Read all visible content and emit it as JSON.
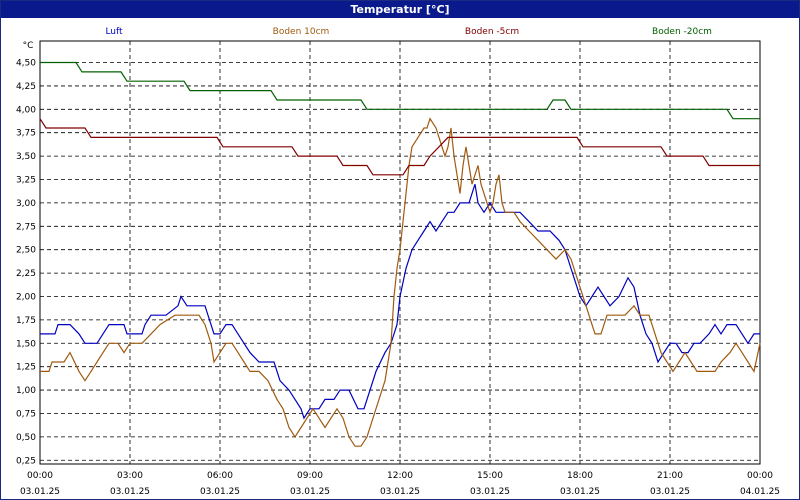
{
  "window": {
    "title": "Temperatur [°C]"
  },
  "chart_data": {
    "type": "line",
    "title": "Temperatur [°C]",
    "ylabel": "°C",
    "xlabel": "",
    "grid": true,
    "legend_placement": "top",
    "xlim": [
      "03.01.25 00:00",
      "04.01.25 00:00"
    ],
    "ylim": [
      0.21,
      4.73
    ],
    "y_ticks": [
      "4,50",
      "4,25",
      "4,00",
      "3,75",
      "3,50",
      "3,25",
      "3,00",
      "2,75",
      "2,50",
      "2,25",
      "2,00",
      "1,75",
      "1,50",
      "1,25",
      "1,00",
      "0,75",
      "0,50",
      "0,25"
    ],
    "y_tick_values": [
      4.5,
      4.25,
      4.0,
      3.75,
      3.5,
      3.25,
      3.0,
      2.75,
      2.5,
      2.25,
      2.0,
      1.75,
      1.5,
      1.25,
      1.0,
      0.75,
      0.5,
      0.25
    ],
    "x_ticks": [
      {
        "time": "00:00",
        "date": "03.01.25"
      },
      {
        "time": "03:00",
        "date": "03.01.25"
      },
      {
        "time": "06:00",
        "date": "03.01.25"
      },
      {
        "time": "09:00",
        "date": "03.01.25"
      },
      {
        "time": "12:00",
        "date": "03.01.25"
      },
      {
        "time": "15:00",
        "date": "03.01.25"
      },
      {
        "time": "18:00",
        "date": "03.01.25"
      },
      {
        "time": "21:00",
        "date": "03.01.25"
      },
      {
        "time": "00:00",
        "date": "04.01.25"
      }
    ],
    "x_tick_hours": [
      0,
      3,
      6,
      9,
      12,
      15,
      18,
      21,
      24
    ],
    "series": [
      {
        "name": "Luft",
        "color": "#0000c0",
        "points": [
          [
            0,
            1.6
          ],
          [
            0.5,
            1.6
          ],
          [
            0.6,
            1.7
          ],
          [
            1.0,
            1.7
          ],
          [
            1.3,
            1.6
          ],
          [
            1.5,
            1.5
          ],
          [
            1.9,
            1.5
          ],
          [
            2.1,
            1.6
          ],
          [
            2.3,
            1.7
          ],
          [
            2.8,
            1.7
          ],
          [
            2.9,
            1.6
          ],
          [
            3.4,
            1.6
          ],
          [
            3.5,
            1.7
          ],
          [
            3.7,
            1.8
          ],
          [
            4.2,
            1.8
          ],
          [
            4.6,
            1.9
          ],
          [
            4.7,
            2.0
          ],
          [
            4.9,
            1.9
          ],
          [
            5.5,
            1.9
          ],
          [
            5.7,
            1.7
          ],
          [
            5.8,
            1.6
          ],
          [
            6.0,
            1.6
          ],
          [
            6.2,
            1.7
          ],
          [
            6.4,
            1.7
          ],
          [
            6.6,
            1.6
          ],
          [
            6.8,
            1.5
          ],
          [
            7.0,
            1.4
          ],
          [
            7.3,
            1.3
          ],
          [
            7.8,
            1.3
          ],
          [
            8.0,
            1.1
          ],
          [
            8.3,
            1.0
          ],
          [
            8.5,
            0.9
          ],
          [
            8.7,
            0.8
          ],
          [
            8.8,
            0.7
          ],
          [
            9.0,
            0.8
          ],
          [
            9.3,
            0.8
          ],
          [
            9.5,
            0.9
          ],
          [
            9.8,
            0.9
          ],
          [
            10.0,
            1.0
          ],
          [
            10.3,
            1.0
          ],
          [
            10.6,
            0.8
          ],
          [
            10.8,
            0.8
          ],
          [
            11.0,
            1.0
          ],
          [
            11.2,
            1.2
          ],
          [
            11.5,
            1.4
          ],
          [
            11.7,
            1.5
          ],
          [
            11.9,
            1.7
          ],
          [
            12.0,
            2.0
          ],
          [
            12.2,
            2.3
          ],
          [
            12.4,
            2.5
          ],
          [
            12.6,
            2.6
          ],
          [
            12.8,
            2.7
          ],
          [
            13.0,
            2.8
          ],
          [
            13.2,
            2.7
          ],
          [
            13.4,
            2.8
          ],
          [
            13.6,
            2.9
          ],
          [
            13.8,
            2.9
          ],
          [
            14.0,
            3.0
          ],
          [
            14.3,
            3.0
          ],
          [
            14.5,
            3.2
          ],
          [
            14.6,
            3.0
          ],
          [
            14.8,
            2.9
          ],
          [
            15.0,
            3.0
          ],
          [
            15.2,
            2.9
          ],
          [
            15.4,
            2.9
          ],
          [
            15.6,
            2.9
          ],
          [
            16.0,
            2.9
          ],
          [
            16.3,
            2.8
          ],
          [
            16.6,
            2.7
          ],
          [
            17.0,
            2.7
          ],
          [
            17.3,
            2.6
          ],
          [
            17.5,
            2.5
          ],
          [
            17.7,
            2.3
          ],
          [
            17.9,
            2.1
          ],
          [
            18.0,
            2.0
          ],
          [
            18.2,
            1.9
          ],
          [
            18.4,
            2.0
          ],
          [
            18.6,
            2.1
          ],
          [
            18.8,
            2.0
          ],
          [
            19.0,
            1.9
          ],
          [
            19.3,
            2.0
          ],
          [
            19.6,
            2.2
          ],
          [
            19.8,
            2.1
          ],
          [
            20.0,
            1.8
          ],
          [
            20.2,
            1.6
          ],
          [
            20.4,
            1.5
          ],
          [
            20.6,
            1.3
          ],
          [
            20.8,
            1.4
          ],
          [
            21.0,
            1.5
          ],
          [
            21.2,
            1.5
          ],
          [
            21.4,
            1.4
          ],
          [
            21.6,
            1.4
          ],
          [
            21.8,
            1.5
          ],
          [
            22.0,
            1.5
          ],
          [
            22.3,
            1.6
          ],
          [
            22.5,
            1.7
          ],
          [
            22.7,
            1.6
          ],
          [
            22.9,
            1.7
          ],
          [
            23.2,
            1.7
          ],
          [
            23.4,
            1.6
          ],
          [
            23.6,
            1.5
          ],
          [
            23.8,
            1.6
          ],
          [
            24.0,
            1.6
          ]
        ]
      },
      {
        "name": "Boden 10cm",
        "color": "#a05a10",
        "points": [
          [
            0,
            1.2
          ],
          [
            0.3,
            1.2
          ],
          [
            0.4,
            1.3
          ],
          [
            0.8,
            1.3
          ],
          [
            1.0,
            1.4
          ],
          [
            1.3,
            1.2
          ],
          [
            1.5,
            1.1
          ],
          [
            1.7,
            1.2
          ],
          [
            1.9,
            1.3
          ],
          [
            2.1,
            1.4
          ],
          [
            2.3,
            1.5
          ],
          [
            2.6,
            1.5
          ],
          [
            2.8,
            1.4
          ],
          [
            3.0,
            1.5
          ],
          [
            3.4,
            1.5
          ],
          [
            3.7,
            1.6
          ],
          [
            4.0,
            1.7
          ],
          [
            4.5,
            1.8
          ],
          [
            5.3,
            1.8
          ],
          [
            5.5,
            1.7
          ],
          [
            5.7,
            1.5
          ],
          [
            5.8,
            1.3
          ],
          [
            6.0,
            1.4
          ],
          [
            6.2,
            1.5
          ],
          [
            6.4,
            1.5
          ],
          [
            6.6,
            1.4
          ],
          [
            6.8,
            1.3
          ],
          [
            7.0,
            1.2
          ],
          [
            7.3,
            1.2
          ],
          [
            7.6,
            1.1
          ],
          [
            7.9,
            0.9
          ],
          [
            8.1,
            0.8
          ],
          [
            8.3,
            0.6
          ],
          [
            8.5,
            0.5
          ],
          [
            8.7,
            0.6
          ],
          [
            8.9,
            0.7
          ],
          [
            9.1,
            0.8
          ],
          [
            9.3,
            0.7
          ],
          [
            9.5,
            0.6
          ],
          [
            9.7,
            0.7
          ],
          [
            9.9,
            0.8
          ],
          [
            10.1,
            0.7
          ],
          [
            10.3,
            0.5
          ],
          [
            10.5,
            0.4
          ],
          [
            10.7,
            0.4
          ],
          [
            10.9,
            0.5
          ],
          [
            11.1,
            0.7
          ],
          [
            11.3,
            0.9
          ],
          [
            11.5,
            1.1
          ],
          [
            11.6,
            1.3
          ],
          [
            11.7,
            1.5
          ],
          [
            11.8,
            2.0
          ],
          [
            11.9,
            2.3
          ],
          [
            12.0,
            2.5
          ],
          [
            12.1,
            2.8
          ],
          [
            12.2,
            3.1
          ],
          [
            12.3,
            3.4
          ],
          [
            12.4,
            3.6
          ],
          [
            12.6,
            3.7
          ],
          [
            12.8,
            3.8
          ],
          [
            12.9,
            3.8
          ],
          [
            13.0,
            3.9
          ],
          [
            13.2,
            3.8
          ],
          [
            13.3,
            3.7
          ],
          [
            13.4,
            3.6
          ],
          [
            13.5,
            3.5
          ],
          [
            13.6,
            3.6
          ],
          [
            13.7,
            3.8
          ],
          [
            13.8,
            3.5
          ],
          [
            13.9,
            3.3
          ],
          [
            14.0,
            3.1
          ],
          [
            14.1,
            3.4
          ],
          [
            14.2,
            3.6
          ],
          [
            14.3,
            3.4
          ],
          [
            14.4,
            3.2
          ],
          [
            14.5,
            3.3
          ],
          [
            14.6,
            3.4
          ],
          [
            14.7,
            3.2
          ],
          [
            14.8,
            3.1
          ],
          [
            14.9,
            3.0
          ],
          [
            15.0,
            2.9
          ],
          [
            15.1,
            3.0
          ],
          [
            15.2,
            3.2
          ],
          [
            15.3,
            3.3
          ],
          [
            15.4,
            3.0
          ],
          [
            15.5,
            2.9
          ],
          [
            15.8,
            2.9
          ],
          [
            16.0,
            2.8
          ],
          [
            16.3,
            2.7
          ],
          [
            16.6,
            2.6
          ],
          [
            16.9,
            2.5
          ],
          [
            17.2,
            2.4
          ],
          [
            17.5,
            2.5
          ],
          [
            17.7,
            2.4
          ],
          [
            17.9,
            2.2
          ],
          [
            18.1,
            2.0
          ],
          [
            18.3,
            1.8
          ],
          [
            18.5,
            1.6
          ],
          [
            18.7,
            1.6
          ],
          [
            18.9,
            1.8
          ],
          [
            19.2,
            1.8
          ],
          [
            19.5,
            1.8
          ],
          [
            19.8,
            1.9
          ],
          [
            20.0,
            1.8
          ],
          [
            20.3,
            1.8
          ],
          [
            20.5,
            1.6
          ],
          [
            20.7,
            1.4
          ],
          [
            20.9,
            1.3
          ],
          [
            21.1,
            1.2
          ],
          [
            21.3,
            1.3
          ],
          [
            21.5,
            1.4
          ],
          [
            21.7,
            1.3
          ],
          [
            21.9,
            1.2
          ],
          [
            22.2,
            1.2
          ],
          [
            22.5,
            1.2
          ],
          [
            22.7,
            1.3
          ],
          [
            23.0,
            1.4
          ],
          [
            23.2,
            1.5
          ],
          [
            23.4,
            1.4
          ],
          [
            23.6,
            1.3
          ],
          [
            23.8,
            1.2
          ],
          [
            24.0,
            1.5
          ]
        ]
      },
      {
        "name": "Boden -5cm",
        "color": "#800000",
        "points": [
          [
            0,
            3.9
          ],
          [
            0.2,
            3.8
          ],
          [
            1.5,
            3.8
          ],
          [
            1.7,
            3.7
          ],
          [
            5.9,
            3.7
          ],
          [
            6.1,
            3.6
          ],
          [
            8.4,
            3.6
          ],
          [
            8.6,
            3.5
          ],
          [
            9.9,
            3.5
          ],
          [
            10.1,
            3.4
          ],
          [
            10.9,
            3.4
          ],
          [
            11.1,
            3.3
          ],
          [
            12.1,
            3.3
          ],
          [
            12.3,
            3.4
          ],
          [
            12.8,
            3.4
          ],
          [
            13.0,
            3.5
          ],
          [
            13.3,
            3.6
          ],
          [
            13.6,
            3.7
          ],
          [
            17.9,
            3.7
          ],
          [
            18.1,
            3.6
          ],
          [
            20.7,
            3.6
          ],
          [
            20.9,
            3.5
          ],
          [
            22.1,
            3.5
          ],
          [
            22.3,
            3.4
          ],
          [
            24.0,
            3.4
          ]
        ]
      },
      {
        "name": "Boden -20cm",
        "color": "#006000",
        "points": [
          [
            0,
            4.5
          ],
          [
            1.2,
            4.5
          ],
          [
            1.4,
            4.4
          ],
          [
            2.7,
            4.4
          ],
          [
            2.9,
            4.3
          ],
          [
            4.8,
            4.3
          ],
          [
            5.0,
            4.2
          ],
          [
            7.7,
            4.2
          ],
          [
            7.9,
            4.1
          ],
          [
            10.7,
            4.1
          ],
          [
            10.9,
            4.0
          ],
          [
            16.9,
            4.0
          ],
          [
            17.1,
            4.1
          ],
          [
            17.5,
            4.1
          ],
          [
            17.7,
            4.0
          ],
          [
            22.9,
            4.0
          ],
          [
            23.1,
            3.9
          ],
          [
            24.0,
            3.9
          ]
        ]
      }
    ]
  }
}
